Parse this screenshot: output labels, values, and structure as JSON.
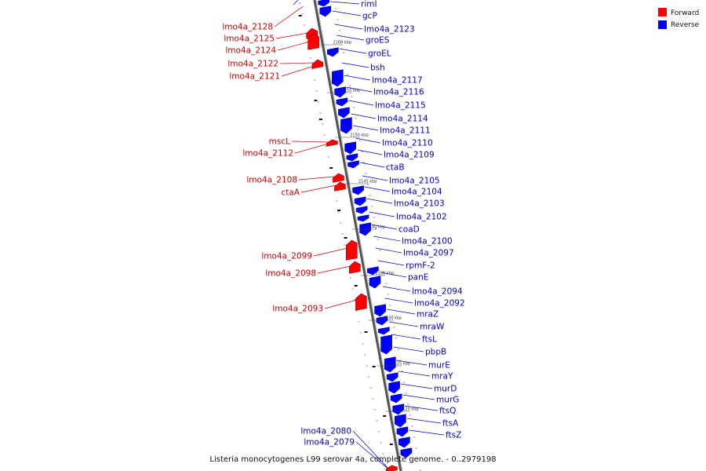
{
  "caption": "Listeria monocytogenes L99 serovar 4a, complete genome. - 0..2979198",
  "legend": [
    {
      "label": "Forward",
      "color": "#ff0000"
    },
    {
      "label": "Reverse",
      "color": "#0000ff"
    }
  ],
  "ticks": [
    "2160 kbp",
    "2155 kbp",
    "2150 kbp",
    "2145 kbp",
    "2140 kbp",
    "2135 kbp",
    "2130 kbp",
    "2125 kbp",
    "2120 kbp"
  ],
  "forward_labels": [
    "lmo4a_2128",
    "lmo4a_2125",
    "lmo4a_2124",
    "lmo4a_2122",
    "lmo4a_2121",
    "mscL",
    "lmo4a_2112",
    "lmo4a_2108",
    "ctaA",
    "lmo4a_2099",
    "lmo4a_2098",
    "lmo4a_2093",
    "lmo4a_2080",
    "lmo4a_2079"
  ],
  "reverse_labels": [
    "rimI",
    "gcP",
    "lmo4a_2123",
    "groES",
    "groEL",
    "bsh",
    "lmo4a_2117",
    "lmo4a_2116",
    "lmo4a_2115",
    "lmo4a_2114",
    "lmo4a_2111",
    "lmo4a_2110",
    "lmo4a_2109",
    "ctaB",
    "lmo4a_2105",
    "lmo4a_2104",
    "lmo4a_2103",
    "lmo4a_2102",
    "coaD",
    "lmo4a_2100",
    "lmo4a_2097",
    "rpmF-2",
    "panE",
    "lmo4a_2094",
    "lmo4a_2092",
    "mraZ",
    "mraW",
    "ftsL",
    "pbpB",
    "murE",
    "mraY",
    "murD",
    "murG",
    "ftsQ",
    "ftsA",
    "ftsZ"
  ]
}
